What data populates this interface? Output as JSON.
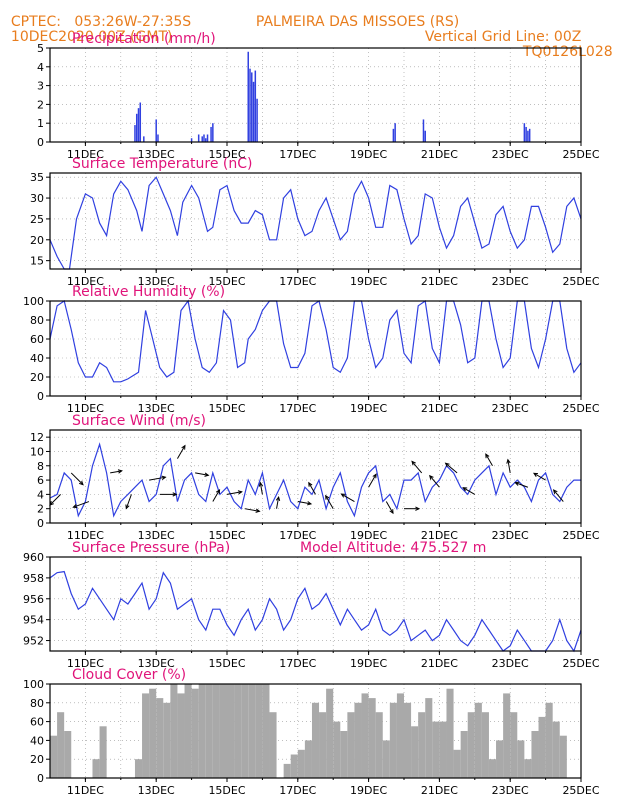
{
  "header": {
    "left_line1": "CPTEC:   053:26W-27:35S",
    "left_line2": "10DEC2020 00Z (GMT)",
    "center_line1": "PALMEIRA DAS MISSOES (RS)",
    "right_line2": "Vertical Grid Line: 00Z",
    "right_line3": "TQ0126L028"
  },
  "colors": {
    "header": "#e87d1e",
    "title": "#e0147a",
    "line": "#3040e0",
    "bar": "#a9a9a9",
    "grid": "#999999",
    "wind_arrow": "#000000"
  },
  "chart_data": [
    {
      "type": "bar",
      "title": "Precipitation (mm/h)",
      "x_tick_labels": [
        "11DEC",
        "13DEC",
        "15DEC",
        "17DEC",
        "19DEC",
        "21DEC",
        "23DEC",
        "25DEC"
      ],
      "xlim_days": [
        10,
        25
      ],
      "ylim": [
        0,
        5
      ],
      "y_ticks": [
        0,
        1,
        2,
        3,
        4,
        5
      ],
      "x": [
        12.4,
        12.45,
        12.5,
        12.55,
        12.65,
        13.0,
        13.05,
        14.0,
        14.2,
        14.3,
        14.35,
        14.4,
        14.45,
        14.55,
        14.6,
        15.6,
        15.65,
        15.7,
        15.75,
        15.8,
        15.85,
        19.7,
        19.75,
        20.55,
        20.6,
        23.4,
        23.45,
        23.5,
        23.55
      ],
      "values": [
        0.9,
        1.5,
        1.8,
        2.1,
        0.3,
        1.2,
        0.4,
        0.2,
        0.4,
        0.3,
        0.4,
        0.2,
        0.4,
        0.8,
        1.0,
        4.8,
        3.9,
        3.7,
        3.2,
        3.8,
        2.3,
        0.7,
        1.0,
        1.2,
        0.6,
        1.0,
        0.8,
        0.6,
        0.7
      ]
    },
    {
      "type": "line",
      "title": "Surface Temperature (nC)",
      "x_tick_labels": [
        "11DEC",
        "13DEC",
        "15DEC",
        "17DEC",
        "19DEC",
        "21DEC",
        "23DEC",
        "25DEC"
      ],
      "xlim_days": [
        10,
        25
      ],
      "ylim": [
        13,
        36
      ],
      "y_ticks": [
        15,
        20,
        25,
        30,
        35
      ],
      "x": [
        10,
        10.2,
        10.4,
        10.55,
        10.75,
        11.0,
        11.2,
        11.4,
        11.6,
        11.8,
        12.0,
        12.2,
        12.45,
        12.6,
        12.8,
        13.0,
        13.2,
        13.4,
        13.6,
        13.75,
        14.0,
        14.2,
        14.45,
        14.6,
        14.8,
        15.0,
        15.2,
        15.4,
        15.6,
        15.8,
        16.0,
        16.2,
        16.4,
        16.6,
        16.8,
        17.0,
        17.2,
        17.4,
        17.6,
        17.8,
        18.0,
        18.2,
        18.4,
        18.6,
        18.8,
        19.0,
        19.2,
        19.4,
        19.6,
        19.8,
        20.0,
        20.2,
        20.4,
        20.6,
        20.8,
        21.0,
        21.2,
        21.4,
        21.6,
        21.8,
        22.0,
        22.2,
        22.4,
        22.6,
        22.8,
        23.0,
        23.2,
        23.4,
        23.6,
        23.8,
        24.0,
        24.2,
        24.4,
        24.6,
        24.8,
        25.0
      ],
      "values": [
        20,
        16,
        13,
        13,
        25,
        31,
        30,
        24,
        21,
        31,
        34,
        32,
        27,
        22,
        33,
        35,
        31,
        27,
        21,
        29,
        33,
        30,
        22,
        23,
        32,
        33,
        27,
        24,
        24,
        27,
        26,
        20,
        20,
        30,
        32,
        25,
        21,
        22,
        27,
        30,
        25,
        20,
        22,
        31,
        34,
        30,
        23,
        23,
        33,
        32,
        25,
        19,
        21,
        31,
        30,
        23,
        18,
        21,
        28,
        30,
        24,
        18,
        19,
        26,
        28,
        22,
        18,
        20,
        28,
        28,
        23,
        17,
        19,
        28,
        30,
        25
      ]
    },
    {
      "type": "line",
      "title": "Relative Humidity (%)",
      "x_tick_labels": [
        "11DEC",
        "13DEC",
        "15DEC",
        "17DEC",
        "19DEC",
        "21DEC",
        "23DEC",
        "25DEC"
      ],
      "xlim_days": [
        10,
        25
      ],
      "ylim": [
        0,
        100
      ],
      "y_ticks": [
        0,
        20,
        40,
        60,
        80,
        100
      ],
      "x": [
        10,
        10.2,
        10.4,
        10.6,
        10.8,
        11.0,
        11.2,
        11.4,
        11.6,
        11.8,
        12.0,
        12.2,
        12.5,
        12.7,
        12.9,
        13.1,
        13.3,
        13.5,
        13.7,
        13.9,
        14.1,
        14.3,
        14.5,
        14.7,
        14.9,
        15.1,
        15.3,
        15.5,
        15.6,
        15.8,
        16.0,
        16.2,
        16.4,
        16.6,
        16.8,
        17.0,
        17.2,
        17.4,
        17.6,
        17.8,
        18.0,
        18.2,
        18.4,
        18.6,
        18.8,
        19.0,
        19.2,
        19.4,
        19.6,
        19.8,
        20.0,
        20.2,
        20.4,
        20.6,
        20.8,
        21.0,
        21.2,
        21.4,
        21.6,
        21.8,
        22.0,
        22.2,
        22.4,
        22.6,
        22.8,
        23.0,
        23.2,
        23.4,
        23.6,
        23.8,
        24.0,
        24.2,
        24.4,
        24.6,
        24.8,
        25.0
      ],
      "values": [
        60,
        95,
        100,
        70,
        35,
        20,
        20,
        35,
        30,
        15,
        15,
        18,
        25,
        90,
        60,
        30,
        20,
        25,
        90,
        100,
        60,
        30,
        25,
        35,
        90,
        80,
        30,
        35,
        60,
        70,
        90,
        100,
        100,
        55,
        30,
        30,
        45,
        95,
        100,
        70,
        30,
        25,
        40,
        100,
        100,
        60,
        30,
        40,
        80,
        90,
        45,
        35,
        95,
        100,
        50,
        35,
        100,
        100,
        75,
        35,
        40,
        100,
        100,
        60,
        30,
        40,
        100,
        100,
        50,
        30,
        60,
        100,
        100,
        50,
        25,
        35
      ]
    },
    {
      "type": "line",
      "title": "Surface Wind (m/s)",
      "x_tick_labels": [
        "11DEC",
        "13DEC",
        "15DEC",
        "17DEC",
        "19DEC",
        "21DEC",
        "23DEC",
        "25DEC"
      ],
      "xlim_days": [
        10,
        25
      ],
      "ylim": [
        0,
        13
      ],
      "y_ticks": [
        0,
        2,
        4,
        6,
        8,
        10,
        12
      ],
      "x": [
        10,
        10.2,
        10.4,
        10.6,
        10.8,
        11.0,
        11.2,
        11.4,
        11.6,
        11.8,
        12.0,
        12.2,
        12.4,
        12.6,
        12.8,
        13.0,
        13.2,
        13.4,
        13.6,
        13.8,
        14.0,
        14.2,
        14.4,
        14.6,
        14.8,
        15.0,
        15.2,
        15.4,
        15.6,
        15.8,
        16.0,
        16.2,
        16.4,
        16.6,
        16.8,
        17.0,
        17.2,
        17.4,
        17.6,
        17.8,
        18.0,
        18.2,
        18.4,
        18.6,
        18.8,
        19.0,
        19.2,
        19.4,
        19.6,
        19.8,
        20.0,
        20.2,
        20.4,
        20.6,
        20.8,
        21.0,
        21.2,
        21.4,
        21.6,
        21.8,
        22.0,
        22.2,
        22.4,
        22.6,
        22.8,
        23.0,
        23.2,
        23.4,
        23.6,
        23.8,
        24.0,
        24.2,
        24.4,
        24.6,
        24.8,
        25.0
      ],
      "values": [
        3.5,
        4,
        7,
        6,
        1,
        3,
        8,
        11,
        7,
        1,
        3,
        4,
        5,
        6,
        3,
        4,
        8,
        9,
        3,
        6,
        7,
        4,
        3,
        7,
        4,
        5,
        3,
        2,
        6,
        4,
        7,
        2,
        4,
        6,
        3,
        2,
        5,
        4,
        6,
        2,
        5,
        7,
        3,
        1,
        5,
        7,
        8,
        3,
        4,
        2,
        6,
        6,
        7,
        3,
        5,
        6,
        8,
        7,
        5,
        4,
        6,
        7,
        8,
        4,
        7,
        5,
        6,
        5,
        3,
        6,
        7,
        4,
        3,
        5,
        6,
        6
      ],
      "arrows": [
        {
          "x": 10.3,
          "speed": 5,
          "dir_deg": 225
        },
        {
          "x": 10.6,
          "speed": 6,
          "dir_deg": 135
        },
        {
          "x": 11.1,
          "speed": 6,
          "dir_deg": 250
        },
        {
          "x": 11.7,
          "speed": 3,
          "dir_deg": 80
        },
        {
          "x": 12.3,
          "speed": 5,
          "dir_deg": 200
        },
        {
          "x": 12.8,
          "speed": 6,
          "dir_deg": 80
        },
        {
          "x": 13.1,
          "speed": 6,
          "dir_deg": 90
        },
        {
          "x": 13.6,
          "speed": 5,
          "dir_deg": 30
        },
        {
          "x": 14.1,
          "speed": 4,
          "dir_deg": 100
        },
        {
          "x": 14.6,
          "speed": 4,
          "dir_deg": 30
        },
        {
          "x": 15.0,
          "speed": 5,
          "dir_deg": 80
        },
        {
          "x": 15.5,
          "speed": 5,
          "dir_deg": 100
        },
        {
          "x": 16.0,
          "speed": 3,
          "dir_deg": 350
        },
        {
          "x": 16.4,
          "speed": 3,
          "dir_deg": 10
        },
        {
          "x": 17.0,
          "speed": 4,
          "dir_deg": 100
        },
        {
          "x": 17.5,
          "speed": 4,
          "dir_deg": 330
        },
        {
          "x": 18.0,
          "speed": 5,
          "dir_deg": 330
        },
        {
          "x": 18.6,
          "speed": 5,
          "dir_deg": 300
        },
        {
          "x": 19.0,
          "speed": 5,
          "dir_deg": 30
        },
        {
          "x": 19.5,
          "speed": 4,
          "dir_deg": 150
        },
        {
          "x": 20.0,
          "speed": 5,
          "dir_deg": 90
        },
        {
          "x": 20.5,
          "speed": 5,
          "dir_deg": 320
        },
        {
          "x": 21.0,
          "speed": 5,
          "dir_deg": 320
        },
        {
          "x": 21.5,
          "speed": 5,
          "dir_deg": 310
        },
        {
          "x": 22.0,
          "speed": 4,
          "dir_deg": 300
        },
        {
          "x": 22.5,
          "speed": 4,
          "dir_deg": 330
        },
        {
          "x": 23.0,
          "speed": 4,
          "dir_deg": 350
        },
        {
          "x": 23.5,
          "speed": 4,
          "dir_deg": 290
        },
        {
          "x": 24.0,
          "speed": 4,
          "dir_deg": 300
        },
        {
          "x": 24.5,
          "speed": 5,
          "dir_deg": 320
        }
      ]
    },
    {
      "type": "line",
      "title": "Surface Pressure (hPa)",
      "annotation": "Model Altitude: 475.527 m",
      "x_tick_labels": [
        "11DEC",
        "13DEC",
        "15DEC",
        "17DEC",
        "19DEC",
        "21DEC",
        "23DEC",
        "25DEC"
      ],
      "xlim_days": [
        10,
        25
      ],
      "ylim": [
        951,
        960
      ],
      "y_ticks": [
        952,
        954,
        956,
        958,
        960
      ],
      "x": [
        10,
        10.2,
        10.4,
        10.6,
        10.8,
        11.0,
        11.2,
        11.4,
        11.6,
        11.8,
        12.0,
        12.2,
        12.4,
        12.6,
        12.8,
        13.0,
        13.2,
        13.4,
        13.6,
        13.8,
        14.0,
        14.2,
        14.4,
        14.6,
        14.8,
        15.0,
        15.2,
        15.4,
        15.6,
        15.8,
        16.0,
        16.2,
        16.4,
        16.6,
        16.8,
        17.0,
        17.2,
        17.4,
        17.6,
        17.8,
        18.0,
        18.2,
        18.4,
        18.6,
        18.8,
        19.0,
        19.2,
        19.4,
        19.6,
        19.8,
        20.0,
        20.2,
        20.4,
        20.6,
        20.8,
        21.0,
        21.2,
        21.4,
        21.6,
        21.8,
        22.0,
        22.2,
        22.4,
        22.6,
        22.8,
        23.0,
        23.2,
        23.4,
        23.6,
        23.8,
        24.0,
        24.2,
        24.4,
        24.6,
        24.8,
        25.0
      ],
      "values": [
        958,
        958.5,
        958.6,
        956.5,
        955,
        955.5,
        957,
        956,
        955,
        954,
        956,
        955.5,
        956.5,
        957.5,
        955,
        956,
        958.5,
        957.5,
        955,
        955.5,
        956,
        954,
        953,
        955,
        955,
        953.5,
        952.5,
        954,
        955,
        953,
        954,
        956,
        955,
        953,
        954,
        956,
        957,
        955,
        955.5,
        956.5,
        955,
        953.5,
        955,
        954,
        953,
        953.5,
        955,
        953,
        952.5,
        953,
        954,
        952,
        952.5,
        953,
        952,
        952.5,
        954,
        953,
        952,
        951.5,
        952.5,
        954,
        953,
        952,
        951,
        951.5,
        953,
        952,
        951,
        951,
        950.5,
        952,
        954,
        952,
        951,
        953
      ]
    },
    {
      "type": "bar",
      "title": "Cloud Cover (%)",
      "x_tick_labels": [
        "11DEC",
        "13DEC",
        "15DEC",
        "17DEC",
        "19DEC",
        "21DEC",
        "23DEC",
        "25DEC"
      ],
      "xlim_days": [
        10,
        25
      ],
      "ylim": [
        0,
        100
      ],
      "y_ticks": [
        0,
        20,
        40,
        60,
        80,
        100
      ],
      "x": [
        10.0,
        10.2,
        10.4,
        10.6,
        10.8,
        11.0,
        11.2,
        11.4,
        11.6,
        11.8,
        12.0,
        12.2,
        12.4,
        12.6,
        12.8,
        13.0,
        13.2,
        13.4,
        13.6,
        13.8,
        14.0,
        14.2,
        14.4,
        14.6,
        14.8,
        15.0,
        15.2,
        15.4,
        15.6,
        15.8,
        16.0,
        16.2,
        16.4,
        16.6,
        16.8,
        17.0,
        17.2,
        17.4,
        17.6,
        17.8,
        18.0,
        18.2,
        18.4,
        18.6,
        18.8,
        19.0,
        19.2,
        19.4,
        19.6,
        19.8,
        20.0,
        20.2,
        20.4,
        20.6,
        20.8,
        21.0,
        21.2,
        21.4,
        21.6,
        21.8,
        22.0,
        22.2,
        22.4,
        22.6,
        22.8,
        23.0,
        23.2,
        23.4,
        23.6,
        23.8,
        24.0,
        24.2,
        24.4,
        24.6,
        24.8
      ],
      "values": [
        45,
        70,
        50,
        0,
        0,
        0,
        20,
        55,
        0,
        0,
        0,
        0,
        20,
        90,
        95,
        85,
        80,
        100,
        90,
        100,
        95,
        100,
        100,
        100,
        100,
        100,
        100,
        100,
        100,
        100,
        100,
        70,
        0,
        15,
        25,
        30,
        40,
        80,
        70,
        95,
        60,
        50,
        70,
        80,
        90,
        85,
        70,
        40,
        80,
        90,
        80,
        55,
        70,
        85,
        60,
        60,
        95,
        30,
        50,
        70,
        80,
        70,
        20,
        40,
        90,
        70,
        40,
        20,
        50,
        65,
        80,
        60,
        45,
        0,
        0
      ]
    }
  ]
}
